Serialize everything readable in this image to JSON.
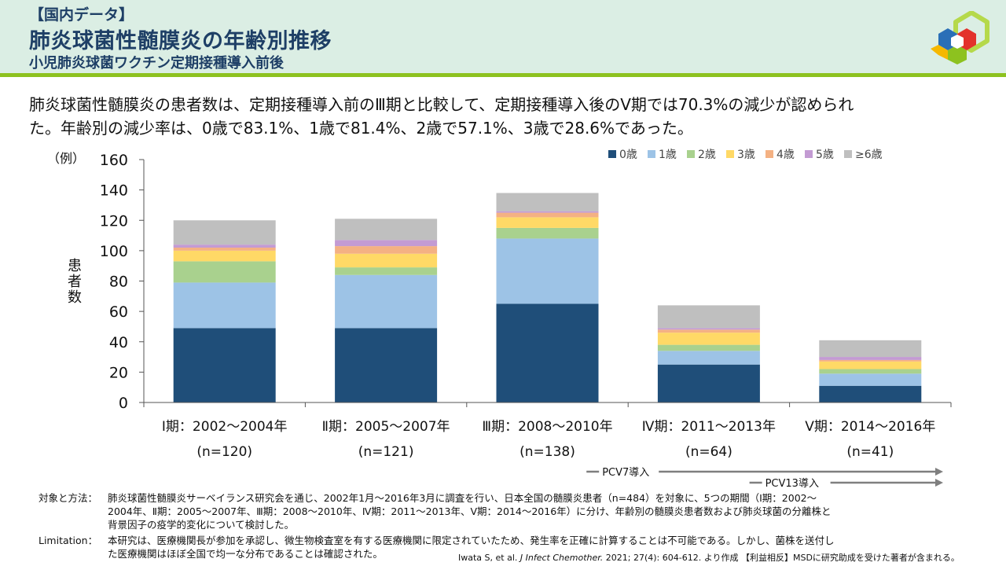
{
  "header": {
    "tag": "【国内データ】",
    "title": "肺炎球菌性髄膜炎の年齢別推移",
    "subtitle": "小児肺炎球菌ワクチン定期接種導入前後"
  },
  "summary": {
    "line1": "肺炎球菌性髄膜炎の患者数は、定期接種導入前のⅢ期と比較して、定期接種導入後のⅤ期では70.3%の減少が認められ",
    "line2": "た。年齢別の減少率は、0歳で83.1%、1歳で81.4%、2歳で57.1%、3歳で28.6%であった。"
  },
  "chart_data": {
    "type": "bar",
    "stacked": true,
    "unit_label": "（例）",
    "ylabel": "患者数",
    "ylim": [
      0,
      160
    ],
    "yticks": [
      0,
      20,
      40,
      60,
      80,
      100,
      120,
      140,
      160
    ],
    "categories": [
      "Ⅰ期：2002～2004年",
      "Ⅱ期：2005～2007年",
      "Ⅲ期：2008～2010年",
      "Ⅳ期：2011～2013年",
      "Ⅴ期：2014～2016年"
    ],
    "category_n": [
      "(n=120)",
      "(n=121)",
      "(n=138)",
      "(n=64)",
      "(n=41)"
    ],
    "series": [
      {
        "name": "0歳",
        "color": "#1f4e79",
        "values": [
          49,
          49,
          65,
          25,
          11
        ]
      },
      {
        "name": "1歳",
        "color": "#9dc3e6",
        "values": [
          30,
          35,
          43,
          9,
          8
        ]
      },
      {
        "name": "2歳",
        "color": "#a9d18e",
        "values": [
          14,
          5,
          7,
          4,
          3
        ]
      },
      {
        "name": "3歳",
        "color": "#ffd966",
        "values": [
          7,
          9,
          7,
          8,
          5
        ]
      },
      {
        "name": "4歳",
        "color": "#f4b183",
        "values": [
          2,
          5,
          3,
          2,
          1
        ]
      },
      {
        "name": "5歳",
        "color": "#c39bd3",
        "values": [
          2,
          4,
          1,
          1,
          2
        ]
      },
      {
        "name": "≥6歳",
        "color": "#bfbfbf",
        "values": [
          16,
          14,
          12,
          15,
          11
        ]
      }
    ],
    "annotations": [
      {
        "label": "PCV7導入",
        "from_category": 3
      },
      {
        "label": "PCV13導入",
        "from_category": 4
      }
    ],
    "legend": "top-right"
  },
  "footnote": {
    "methods_label": "対象と方法：",
    "methods_1": "肺炎球菌性髄膜炎サーベイランス研究会を通じ、2002年1月～2016年3月に調査を行い、日本全国の髄膜炎患者（n=484）を対象に、5つの期間（Ⅰ期：2002～",
    "methods_2": "2004年、Ⅱ期：2005～2007年、Ⅲ期：2008～2010年、Ⅳ期：2011～2013年、Ⅴ期：2014～2016年）に分け、年齢別の髄膜炎患者数および肺炎球菌の分離株と",
    "methods_3": "背景因子の疫学的変化について検討した。",
    "limitation_label": "Limitation：",
    "limitation_1": "本研究は、医療機関長が参加を承認し、微生物検査室を有する医療機関に限定されていたため、発生率を正確に計算することは不可能である。しかし、菌株を送付し",
    "limitation_2": "た医療機関はほぼ全国で均一な分布であることは確認された。",
    "citation_pre": "Iwata S, et al.",
    "citation_journal": "J Infect Chemother.",
    "citation_post": "2021; 27(4): 604-612. より作成 【利益相反】MSDに研究助成を受けた著者が含まれる。"
  }
}
